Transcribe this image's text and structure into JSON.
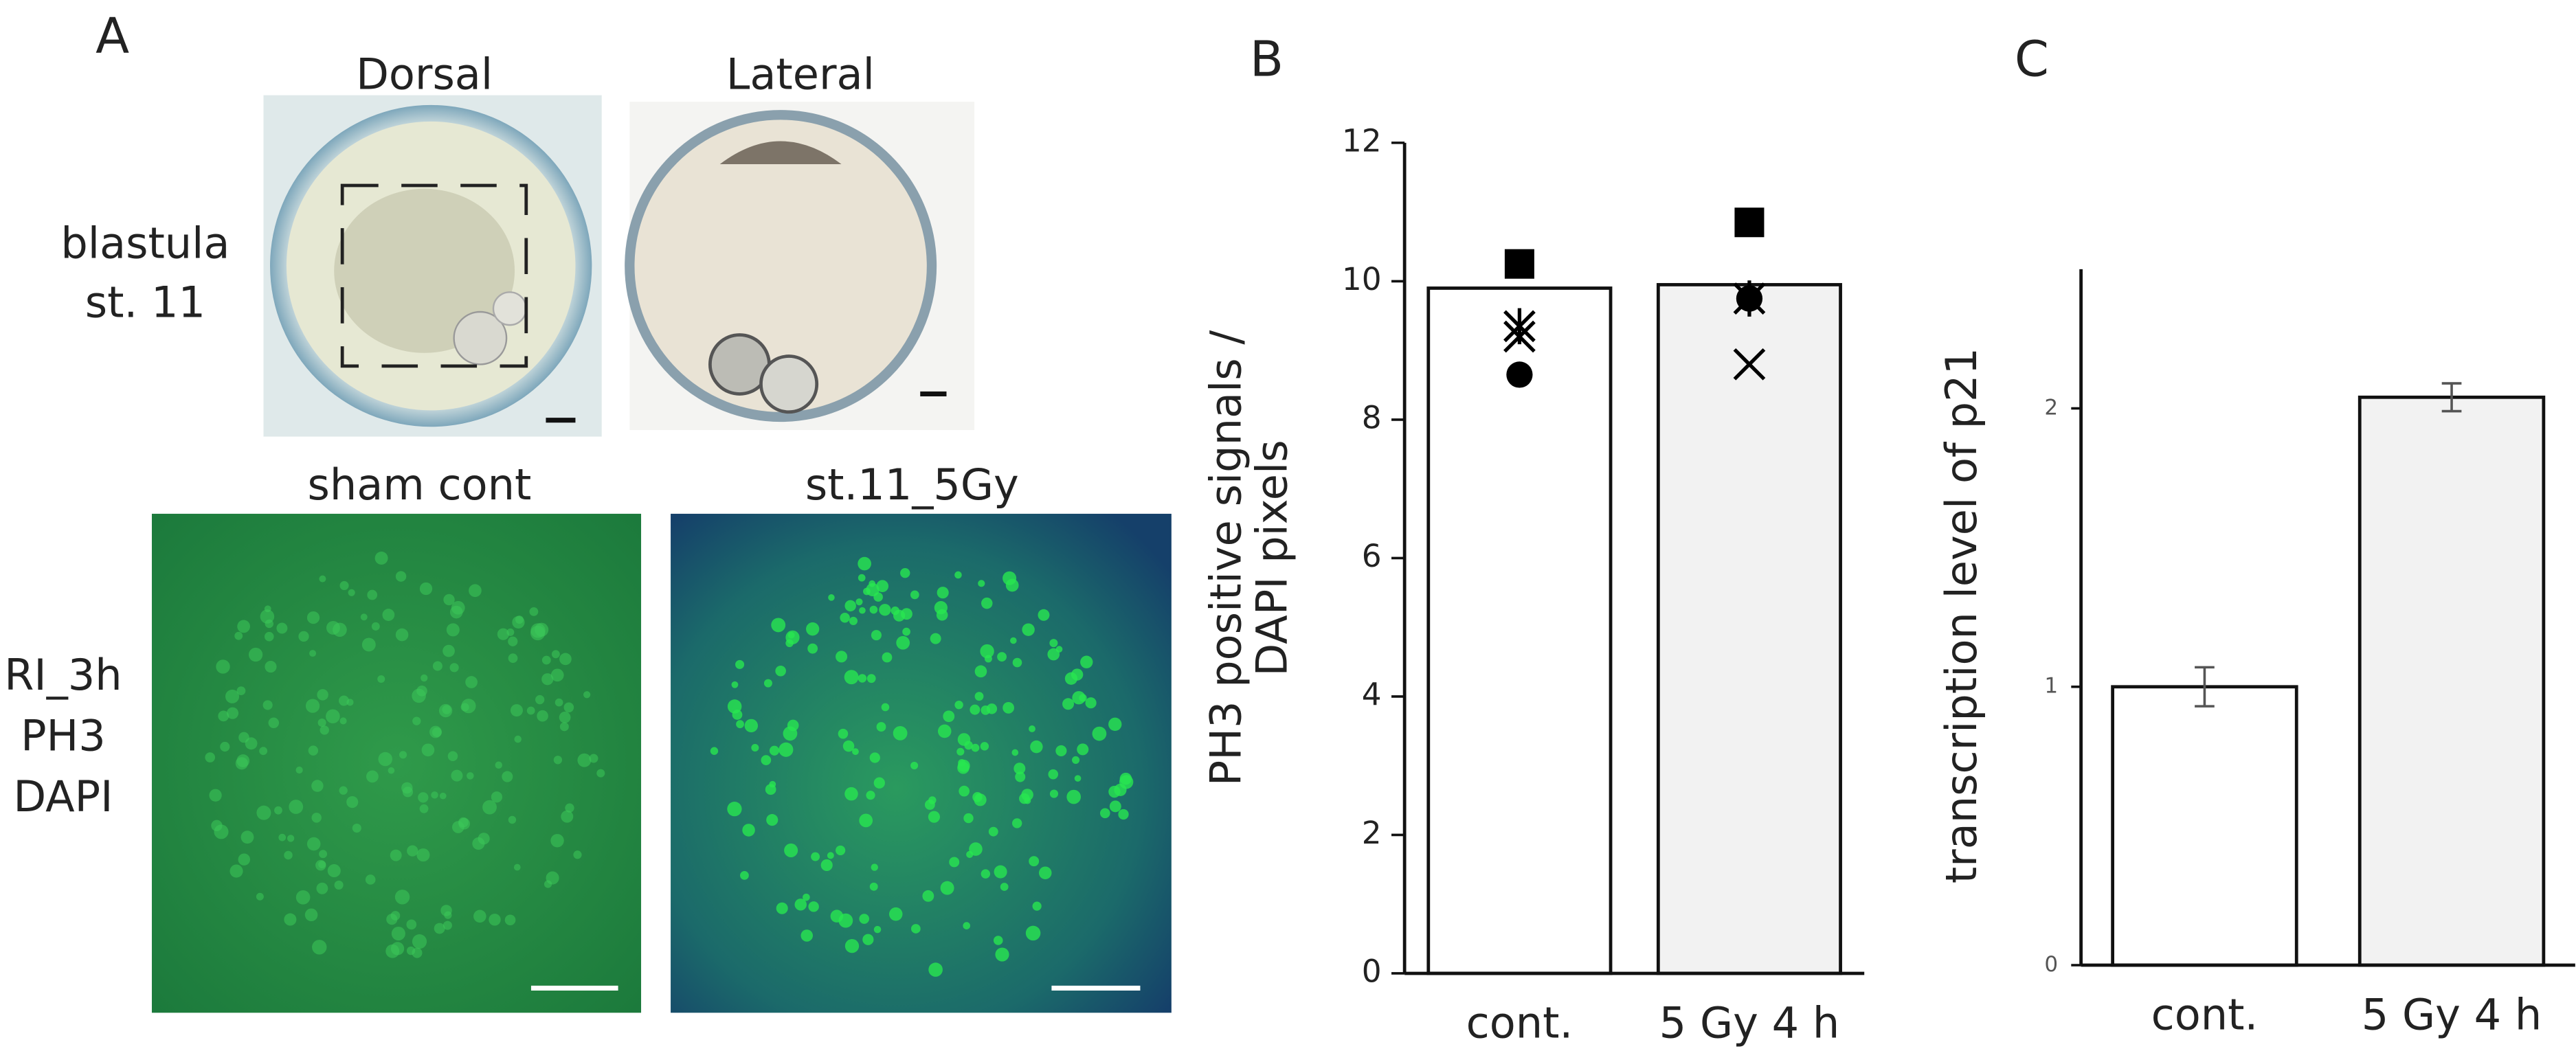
{
  "panel_labels": [
    "A",
    "B",
    "C"
  ],
  "panel_a": {
    "views": [
      "Dorsal",
      "Lateral"
    ],
    "stage": [
      "blastula",
      "st. 11"
    ],
    "conditions": [
      "sham cont",
      "st.11_5Gy"
    ],
    "stain": [
      "RI_3h",
      "PH3",
      "DAPI"
    ]
  },
  "chart_data": [
    {
      "type": "bar",
      "categories": [
        "cont.",
        "5 Gy 4 h"
      ],
      "values": [
        9.9,
        9.95
      ],
      "colors": [
        "#ffffff",
        "#f2f2f2"
      ],
      "ylabel": [
        "PH3 positive signals /",
        "DAPI pixels"
      ],
      "ylim": [
        0,
        12
      ],
      "yticks": [
        0,
        2,
        4,
        6,
        8,
        10,
        12
      ],
      "points": [
        {
          "marker": "square",
          "values": [
            10.25,
            10.85
          ]
        },
        {
          "marker": "asterisk",
          "values": [
            9.35,
            9.75
          ]
        },
        {
          "marker": "cross",
          "values": [
            9.2,
            8.8
          ]
        },
        {
          "marker": "circle",
          "values": [
            8.65,
            9.75
          ]
        }
      ]
    },
    {
      "type": "bar",
      "categories": [
        "cont.",
        "5 Gy 4 h"
      ],
      "values": [
        1.0,
        2.04
      ],
      "errors": [
        0.07,
        0.05
      ],
      "colors": [
        "#ffffff",
        "#f2f2f2"
      ],
      "ylabel": [
        "transcription level of p21"
      ],
      "ylim": [
        0,
        2.5
      ],
      "yticks": [
        0,
        1,
        2
      ]
    }
  ]
}
